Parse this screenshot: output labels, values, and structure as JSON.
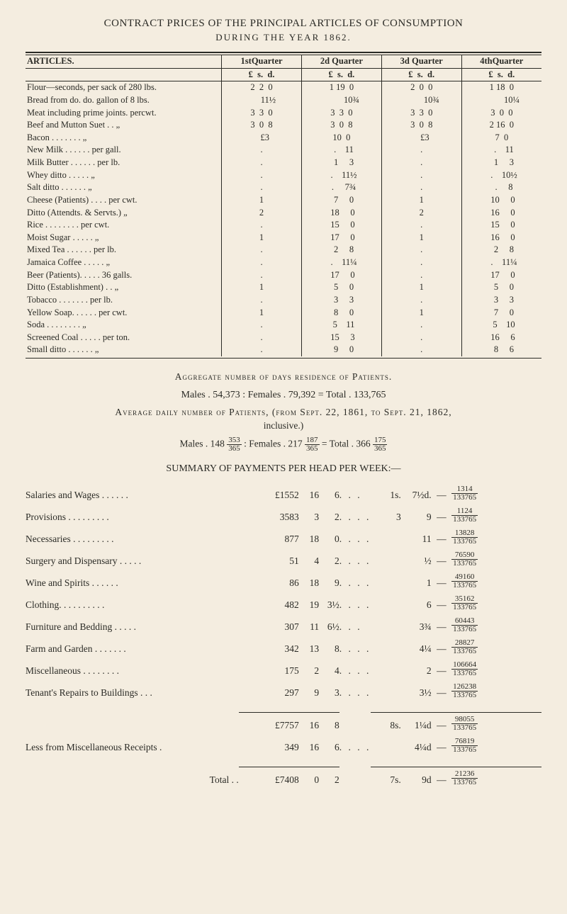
{
  "header": {
    "title": "CONTRACT PRICES OF THE PRINCIPAL ARTICLES OF CONSUMPTION",
    "subtitle": "DURING THE YEAR 1862."
  },
  "price_table": {
    "columns": [
      "ARTICLES.",
      "1stQuarter",
      "2d Quarter",
      "3d Quarter",
      "4thQuarter"
    ],
    "money_header": [
      "£  s.  d.",
      "£  s.  d.",
      "£  s.  d.",
      "£  s.  d."
    ],
    "rows": [
      {
        "article": "Flour—seconds, per sack of 280 lbs.",
        "q": [
          "2  2  0",
          "1 19  0",
          "2  0  0",
          "1 18  0"
        ]
      },
      {
        "article": "Bread from do.  do. gallon of 8 lbs.",
        "q": [
          "      11½",
          "         10¾",
          "         10¾",
          "         10¼"
        ]
      },
      {
        "article": "Meat including prime joints. percwt.",
        "q": [
          "3  3  0",
          "3  3  0",
          "3  3  0",
          "3  0  0"
        ]
      },
      {
        "article": "Beef and Mutton Suet . .      „",
        "q": [
          "3  0  8",
          "3  0  8",
          "3  0  8",
          "2 16  0"
        ]
      },
      {
        "article": "Bacon  . . . . . . .      „",
        "q": [
          "   £3",
          "10  0",
          "   £3",
          "7  0"
        ]
      },
      {
        "article": "New Milk . . . . . . per gall.",
        "q": [
          ".",
          "  .    11",
          ".",
          "  .    11"
        ]
      },
      {
        "article": "Milk Butter . . . . . .  per lb.",
        "q": [
          ".",
          "  1     3",
          ".",
          "  1     3"
        ]
      },
      {
        "article": "Whey ditto  . . . . .       „",
        "q": [
          ".",
          "  .    11½",
          ".",
          "  .    10½"
        ]
      },
      {
        "article": "Salt ditto  . . . . . .       „",
        "q": [
          ".",
          "  .     7¾",
          ".",
          "  .     8"
        ]
      },
      {
        "article": "Cheese (Patients) . . . . per cwt.",
        "q": [
          "1",
          "  7     0",
          "1",
          " 10     0"
        ]
      },
      {
        "article": "Ditto (Attendts. & Servts.)     „",
        "q": [
          "2",
          " 18     0",
          "2",
          " 16     0"
        ]
      },
      {
        "article": "Rice . . . . . . . . per cwt.",
        "q": [
          ".",
          " 15     0",
          ".",
          " 15     0"
        ]
      },
      {
        "article": "Moist Sugar  . . . . .      „",
        "q": [
          "1",
          " 17     0",
          "1",
          " 16     0"
        ]
      },
      {
        "article": "Mixed Tea . . . . . .  per lb.",
        "q": [
          ".",
          "  2     8",
          ".",
          "  2     8"
        ]
      },
      {
        "article": "Jamaica Coffee . . . . .     „",
        "q": [
          ".",
          "  .    11¼",
          ".",
          "  .    11¼"
        ]
      },
      {
        "article": "Beer (Patients). . . . . 36 galls.",
        "q": [
          ".",
          " 17     0",
          ".",
          " 17     0"
        ]
      },
      {
        "article": "Ditto (Establishment) . .     „",
        "q": [
          "1",
          "  5     0",
          "1",
          "  5     0"
        ]
      },
      {
        "article": "Tobacco . . . . . . .  per lb.",
        "q": [
          ".",
          "  3     3",
          ".",
          "  3     3"
        ]
      },
      {
        "article": "Yellow Soap. . . . . . per cwt.",
        "q": [
          "1",
          "  8     0",
          "1",
          "  7     0"
        ]
      },
      {
        "article": "Soda . . . . . . . .      „",
        "q": [
          ".",
          "  5    11",
          ".",
          "  5    10"
        ]
      },
      {
        "article": "Screened Coal . . . . . per ton.",
        "q": [
          ".",
          " 15     3",
          ".",
          " 16     6"
        ]
      },
      {
        "article": "Small ditto . . . . . .      „",
        "q": [
          ".",
          "  9     0",
          ".",
          "  8     6"
        ]
      }
    ]
  },
  "aggregate": {
    "line1": "Aggregate number of days residence of Patients.",
    "line2": "Males . 54,373 :   Females . 79,392 = Total . 133,765"
  },
  "average": {
    "line1": "Average daily number of Patients, (from Sept. 22, 1861, to Sept. 21, 1862,",
    "line2": "inclusive.)",
    "line3_prefix": "Males . 148",
    "line3_frac1_num": "353",
    "line3_frac1_den": "365",
    "line3_mid": ":   Females . 217",
    "line3_frac2_num": "187",
    "line3_frac2_den": "365",
    "line3_mid2": " = Total . 366",
    "line3_frac3_num": "175",
    "line3_frac3_den": "365"
  },
  "summary_header": "SUMMARY OF PAYMENTS PER HEAD PER WEEK:—",
  "summary_rows": [
    {
      "label": "Salaries and Wages . . . . . .",
      "l": "£1552",
      "s": "16",
      "d": "6",
      "dots": ". . .",
      "col2a": "1s.",
      "col2b": "7½d.",
      "frac_num": "1314",
      "frac_den": "133765"
    },
    {
      "label": "Provisions . . . . . . . . .",
      "l": "3583",
      "s": "3",
      "d": "2",
      "dots": ". . . .",
      "col2a": "3",
      "col2b": "9",
      "frac_num": "1124",
      "frac_den": "133765"
    },
    {
      "label": "Necessaries . . . . . . . . .",
      "l": "877",
      "s": "18",
      "d": "0",
      "dots": ". . . .",
      "col2a": "",
      "col2b": "11",
      "frac_num": "13828",
      "frac_den": "133765"
    },
    {
      "label": "Surgery and Dispensary . . . . .",
      "l": "51",
      "s": "4",
      "d": "2",
      "dots": ". . . .",
      "col2a": "",
      "col2b": "½",
      "frac_num": "76590",
      "frac_den": "133765"
    },
    {
      "label": "Wine and Spirits   . . . . . .",
      "l": "86",
      "s": "18",
      "d": "9",
      "dots": ". . . .",
      "col2a": "",
      "col2b": "1",
      "frac_num": "49160",
      "frac_den": "133765"
    },
    {
      "label": "Clothing. . . . . . . . . .",
      "l": "482",
      "s": "19",
      "d": "3½",
      "dots": ". . . .",
      "col2a": "",
      "col2b": "6",
      "frac_num": "35162",
      "frac_den": "133765"
    },
    {
      "label": "Furniture and Bedding . . . . .",
      "l": "307",
      "s": "11",
      "d": "6½",
      "dots": ". . .",
      "col2a": "",
      "col2b": "3¾",
      "frac_num": "60443",
      "frac_den": "133765"
    },
    {
      "label": "Farm and Garden . . . . . . .",
      "l": "342",
      "s": "13",
      "d": "8",
      "dots": ". . . .",
      "col2a": "",
      "col2b": "4¼",
      "frac_num": "28827",
      "frac_den": "133765"
    },
    {
      "label": "Miscellaneous . . . . . . . .",
      "l": "175",
      "s": "2",
      "d": "4",
      "dots": ". . . .",
      "col2a": "",
      "col2b": "2",
      "frac_num": "106664",
      "frac_den": "133765"
    },
    {
      "label": "Tenant's Repairs to Buildings . . .",
      "l": "297",
      "s": "9",
      "d": "3",
      "dots": ". . . .",
      "col2a": "",
      "col2b": "3½",
      "frac_num": "126238",
      "frac_den": "133765"
    }
  ],
  "subtotal": {
    "l": "£7757",
    "s": "16",
    "d": "8",
    "col2a": "8s.",
    "col2b": "1¼d",
    "frac_num": "98055",
    "frac_den": "133765"
  },
  "less_row": {
    "label": "Less from Miscellaneous Receipts  .",
    "l": "349",
    "s": "16",
    "d": "6",
    "dots": ". . . .",
    "col2a": "",
    "col2b": "4¼d",
    "frac_num": "76819",
    "frac_den": "133765"
  },
  "total_row": {
    "label": "Total  .  .",
    "l": "£7408",
    "s": "0",
    "d": "2",
    "col2a": "7s.",
    "col2b": "9d",
    "frac_num": "21236",
    "frac_den": "133765"
  }
}
